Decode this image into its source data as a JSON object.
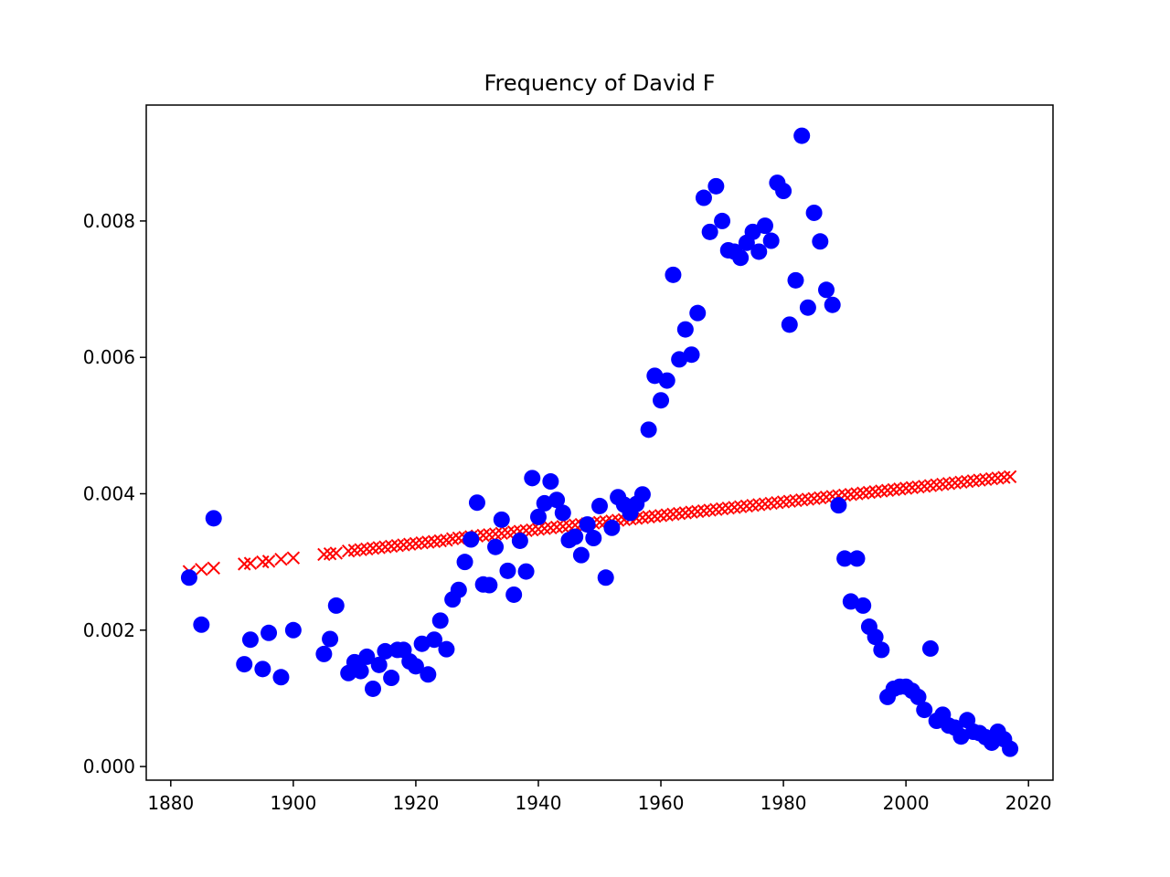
{
  "chart_data": {
    "type": "scatter",
    "title": "Frequency of David F",
    "xlabel": "",
    "ylabel": "",
    "xlim": [
      1876,
      2024
    ],
    "ylim": [
      -0.0002,
      0.0097
    ],
    "x_ticks": [
      1880,
      1900,
      1920,
      1940,
      1960,
      1980,
      2000,
      2020
    ],
    "y_ticks": [
      0.0,
      0.002,
      0.004,
      0.006,
      0.008
    ],
    "y_tick_labels": [
      "0.000",
      "0.002",
      "0.004",
      "0.006",
      "0.008"
    ],
    "grid": false,
    "series": [
      {
        "marker": "circle",
        "color": "#0000ff",
        "points": [
          [
            1883,
            0.00277
          ],
          [
            1885,
            0.00208
          ],
          [
            1887,
            0.00364
          ],
          [
            1892,
            0.0015
          ],
          [
            1893,
            0.00186
          ],
          [
            1895,
            0.00143
          ],
          [
            1896,
            0.00196
          ],
          [
            1898,
            0.00131
          ],
          [
            1900,
            0.002
          ],
          [
            1905,
            0.00165
          ],
          [
            1906,
            0.00187
          ],
          [
            1907,
            0.00236
          ],
          [
            1909,
            0.00137
          ],
          [
            1910,
            0.00153
          ],
          [
            1911,
            0.0014
          ],
          [
            1912,
            0.00161
          ],
          [
            1913,
            0.00114
          ],
          [
            1914,
            0.00149
          ],
          [
            1915,
            0.00169
          ],
          [
            1916,
            0.0013
          ],
          [
            1917,
            0.00171
          ],
          [
            1918,
            0.00171
          ],
          [
            1919,
            0.00154
          ],
          [
            1920,
            0.00147
          ],
          [
            1921,
            0.0018
          ],
          [
            1922,
            0.00135
          ],
          [
            1923,
            0.00186
          ],
          [
            1924,
            0.00214
          ],
          [
            1925,
            0.00172
          ],
          [
            1926,
            0.00245
          ],
          [
            1927,
            0.00259
          ],
          [
            1928,
            0.003
          ],
          [
            1929,
            0.00333
          ],
          [
            1930,
            0.00387
          ],
          [
            1931,
            0.00267
          ],
          [
            1932,
            0.00266
          ],
          [
            1933,
            0.00322
          ],
          [
            1934,
            0.00362
          ],
          [
            1935,
            0.00287
          ],
          [
            1936,
            0.00252
          ],
          [
            1937,
            0.00331
          ],
          [
            1938,
            0.00286
          ],
          [
            1939,
            0.00423
          ],
          [
            1940,
            0.00366
          ],
          [
            1941,
            0.00386
          ],
          [
            1942,
            0.00418
          ],
          [
            1943,
            0.00391
          ],
          [
            1944,
            0.00372
          ],
          [
            1945,
            0.00332
          ],
          [
            1946,
            0.00337
          ],
          [
            1947,
            0.0031
          ],
          [
            1948,
            0.00355
          ],
          [
            1949,
            0.00335
          ],
          [
            1950,
            0.00382
          ],
          [
            1951,
            0.00277
          ],
          [
            1952,
            0.0035
          ],
          [
            1953,
            0.00395
          ],
          [
            1954,
            0.00384
          ],
          [
            1955,
            0.00372
          ],
          [
            1956,
            0.00385
          ],
          [
            1957,
            0.00399
          ],
          [
            1958,
            0.00494
          ],
          [
            1959,
            0.00573
          ],
          [
            1960,
            0.00537
          ],
          [
            1961,
            0.00566
          ],
          [
            1962,
            0.00721
          ],
          [
            1963,
            0.00597
          ],
          [
            1964,
            0.00641
          ],
          [
            1965,
            0.00604
          ],
          [
            1966,
            0.00665
          ],
          [
            1967,
            0.00834
          ],
          [
            1968,
            0.00784
          ],
          [
            1969,
            0.00851
          ],
          [
            1970,
            0.008
          ],
          [
            1971,
            0.00757
          ],
          [
            1972,
            0.00755
          ],
          [
            1973,
            0.00746
          ],
          [
            1974,
            0.00768
          ],
          [
            1975,
            0.00784
          ],
          [
            1976,
            0.00755
          ],
          [
            1977,
            0.00793
          ],
          [
            1978,
            0.00771
          ],
          [
            1979,
            0.00856
          ],
          [
            1980,
            0.00844
          ],
          [
            1981,
            0.00648
          ],
          [
            1982,
            0.00713
          ],
          [
            1983,
            0.00925
          ],
          [
            1984,
            0.00673
          ],
          [
            1985,
            0.00812
          ],
          [
            1986,
            0.0077
          ],
          [
            1987,
            0.00699
          ],
          [
            1988,
            0.00677
          ],
          [
            1989,
            0.00383
          ],
          [
            1990,
            0.00305
          ],
          [
            1991,
            0.00242
          ],
          [
            1992,
            0.00305
          ],
          [
            1993,
            0.00236
          ],
          [
            1994,
            0.00205
          ],
          [
            1995,
            0.0019
          ],
          [
            1996,
            0.00171
          ],
          [
            1997,
            0.00102
          ],
          [
            1998,
            0.00114
          ],
          [
            1999,
            0.00117
          ],
          [
            2000,
            0.00117
          ],
          [
            2001,
            0.00111
          ],
          [
            2002,
            0.00102
          ],
          [
            2003,
            0.00083
          ],
          [
            2004,
            0.00173
          ],
          [
            2005,
            0.00067
          ],
          [
            2006,
            0.00076
          ],
          [
            2007,
            0.0006
          ],
          [
            2008,
            0.00057
          ],
          [
            2009,
            0.00044
          ],
          [
            2010,
            0.00068
          ],
          [
            2011,
            0.00051
          ],
          [
            2012,
            0.00049
          ],
          [
            2013,
            0.00043
          ],
          [
            2014,
            0.00035
          ],
          [
            2015,
            0.00051
          ],
          [
            2016,
            0.0004
          ],
          [
            2017,
            0.00026
          ]
        ]
      },
      {
        "marker": "x",
        "color": "#ff0000",
        "points": [
          [
            1883,
            0.00286
          ],
          [
            1885,
            0.00289
          ],
          [
            1887,
            0.00291
          ],
          [
            1892,
            0.00297
          ],
          [
            1893,
            0.00298
          ],
          [
            1895,
            0.003
          ],
          [
            1896,
            0.00301
          ],
          [
            1898,
            0.00304
          ],
          [
            1900,
            0.00306
          ],
          [
            1905,
            0.00311
          ],
          [
            1906,
            0.00312
          ],
          [
            1907,
            0.00313
          ],
          [
            1909,
            0.00316
          ],
          [
            1910,
            0.00317
          ],
          [
            1911,
            0.00318
          ],
          [
            1912,
            0.00319
          ],
          [
            1913,
            0.0032
          ],
          [
            1914,
            0.00321
          ],
          [
            1915,
            0.00322
          ],
          [
            1916,
            0.00323
          ],
          [
            1917,
            0.00324
          ],
          [
            1918,
            0.00325
          ],
          [
            1919,
            0.00326
          ],
          [
            1920,
            0.00327
          ],
          [
            1921,
            0.00328
          ],
          [
            1922,
            0.00329
          ],
          [
            1923,
            0.0033
          ],
          [
            1924,
            0.00331
          ],
          [
            1925,
            0.00332
          ],
          [
            1926,
            0.00334
          ],
          [
            1927,
            0.00335
          ],
          [
            1928,
            0.00336
          ],
          [
            1929,
            0.00337
          ],
          [
            1930,
            0.00338
          ],
          [
            1931,
            0.00339
          ],
          [
            1932,
            0.0034
          ],
          [
            1933,
            0.00341
          ],
          [
            1934,
            0.00342
          ],
          [
            1935,
            0.00343
          ],
          [
            1936,
            0.00344
          ],
          [
            1937,
            0.00345
          ],
          [
            1938,
            0.00346
          ],
          [
            1939,
            0.00347
          ],
          [
            1940,
            0.00348
          ],
          [
            1941,
            0.00349
          ],
          [
            1942,
            0.0035
          ],
          [
            1943,
            0.00351
          ],
          [
            1944,
            0.00352
          ],
          [
            1945,
            0.00353
          ],
          [
            1946,
            0.00354
          ],
          [
            1947,
            0.00355
          ],
          [
            1948,
            0.00356
          ],
          [
            1949,
            0.00357
          ],
          [
            1950,
            0.00358
          ],
          [
            1951,
            0.00359
          ],
          [
            1952,
            0.0036
          ],
          [
            1953,
            0.00361
          ],
          [
            1954,
            0.00362
          ],
          [
            1955,
            0.00363
          ],
          [
            1956,
            0.00364
          ],
          [
            1957,
            0.00365
          ],
          [
            1958,
            0.00366
          ],
          [
            1959,
            0.00367
          ],
          [
            1960,
            0.00368
          ],
          [
            1961,
            0.00369
          ],
          [
            1962,
            0.0037
          ],
          [
            1963,
            0.00371
          ],
          [
            1964,
            0.00372
          ],
          [
            1965,
            0.00373
          ],
          [
            1966,
            0.00374
          ],
          [
            1967,
            0.00375
          ],
          [
            1968,
            0.00376
          ],
          [
            1969,
            0.00377
          ],
          [
            1970,
            0.00378
          ],
          [
            1971,
            0.00379
          ],
          [
            1972,
            0.0038
          ],
          [
            1973,
            0.00381
          ],
          [
            1974,
            0.00382
          ],
          [
            1975,
            0.00383
          ],
          [
            1976,
            0.00384
          ],
          [
            1977,
            0.00385
          ],
          [
            1978,
            0.00386
          ],
          [
            1979,
            0.00387
          ],
          [
            1980,
            0.00388
          ],
          [
            1981,
            0.00389
          ],
          [
            1982,
            0.0039
          ],
          [
            1983,
            0.00391
          ],
          [
            1984,
            0.00392
          ],
          [
            1985,
            0.00393
          ],
          [
            1986,
            0.00394
          ],
          [
            1987,
            0.00395
          ],
          [
            1988,
            0.00396
          ],
          [
            1989,
            0.00397
          ],
          [
            1990,
            0.00398
          ],
          [
            1991,
            0.00399
          ],
          [
            1992,
            0.004
          ],
          [
            1993,
            0.00401
          ],
          [
            1994,
            0.00402
          ],
          [
            1995,
            0.00403
          ],
          [
            1996,
            0.00404
          ],
          [
            1997,
            0.00405
          ],
          [
            1998,
            0.00406
          ],
          [
            1999,
            0.00407
          ],
          [
            2000,
            0.00408
          ],
          [
            2001,
            0.00409
          ],
          [
            2002,
            0.0041
          ],
          [
            2003,
            0.00411
          ],
          [
            2004,
            0.00412
          ],
          [
            2005,
            0.00413
          ],
          [
            2006,
            0.00414
          ],
          [
            2007,
            0.00415
          ],
          [
            2008,
            0.00416
          ],
          [
            2009,
            0.00417
          ],
          [
            2010,
            0.00418
          ],
          [
            2011,
            0.00419
          ],
          [
            2012,
            0.0042
          ],
          [
            2013,
            0.00421
          ],
          [
            2014,
            0.00422
          ],
          [
            2015,
            0.00423
          ],
          [
            2016,
            0.00424
          ],
          [
            2017,
            0.00425
          ]
        ]
      }
    ]
  }
}
